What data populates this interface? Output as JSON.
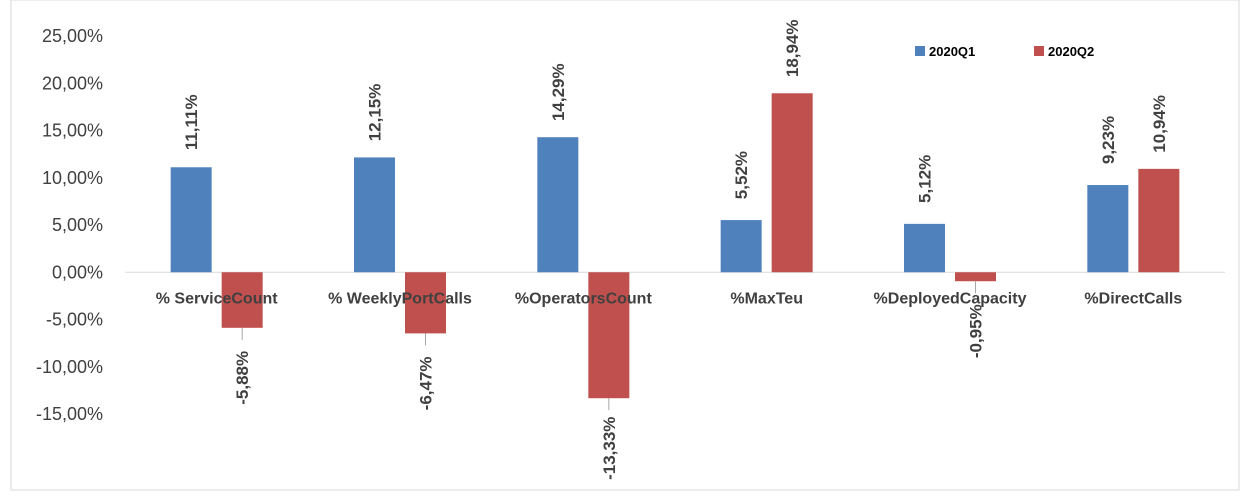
{
  "chart_data": {
    "type": "bar",
    "title": "",
    "xlabel": "",
    "ylabel": "",
    "categories": [
      "% ServiceCount",
      "% WeeklyPortCalls",
      "%OperatorsCount",
      "%MaxTeu",
      "%DeployedCapacity",
      "%DirectCalls"
    ],
    "series": [
      {
        "name": "2020Q1",
        "color": "#4F81BD",
        "values": [
          11.11,
          12.15,
          14.29,
          5.52,
          5.12,
          9.23
        ],
        "labels": [
          "11,11%",
          "12,15%",
          "14,29%",
          "5,52%",
          "5,12%",
          "9,23%"
        ]
      },
      {
        "name": "2020Q2",
        "color": "#C0504D",
        "values": [
          -5.88,
          -6.47,
          -13.33,
          18.94,
          -0.95,
          10.94
        ],
        "labels": [
          "-5,88%",
          "-6,47%",
          "-13,33%",
          "18,94%",
          "-0,95%",
          "10,94%"
        ]
      }
    ],
    "ylim": [
      -15,
      25
    ],
    "yticks": [
      25,
      20,
      15,
      10,
      5,
      0,
      -5,
      -10,
      -15
    ],
    "ytick_labels": [
      "25,00%",
      "20,00%",
      "15,00%",
      "10,00%",
      "5,00%",
      "0,00%",
      "-5,00%",
      "-10,00%",
      "-15,00%"
    ],
    "grid": false,
    "legend_position": "top-right"
  }
}
